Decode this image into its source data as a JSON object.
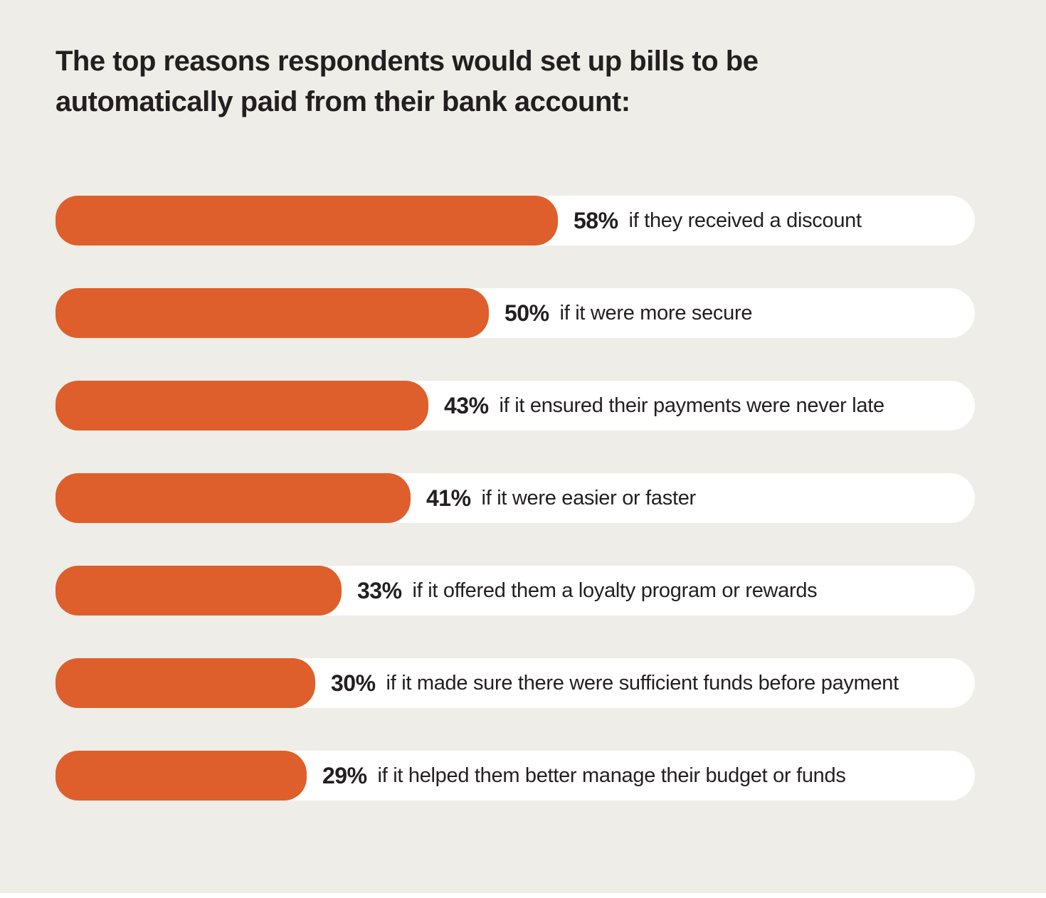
{
  "chart_data": {
    "type": "bar",
    "orientation": "horizontal",
    "title": "The top reasons respondents would set up bills to be automatically paid from their bank account:",
    "categories": [
      "if they received a discount",
      "if it were more secure",
      "if it ensured their payments were never late",
      "if it were easier or faster",
      "if it offered them a loyalty program or rewards",
      "if it made sure there were sufficient funds before payment",
      "if it helped them better manage their budget or funds"
    ],
    "values": [
      58,
      50,
      43,
      41,
      33,
      30,
      29
    ],
    "value_labels": [
      "58%",
      "50%",
      "43%",
      "41%",
      "33%",
      "30%",
      "29%"
    ],
    "value_suffix": "%",
    "xlim": [
      0,
      106
    ],
    "grid": false,
    "legend": false,
    "colors": {
      "bar": "#DE5F2B",
      "track": "#FFFFFF",
      "background": "#EFEDE8",
      "text": "#231F20"
    }
  }
}
